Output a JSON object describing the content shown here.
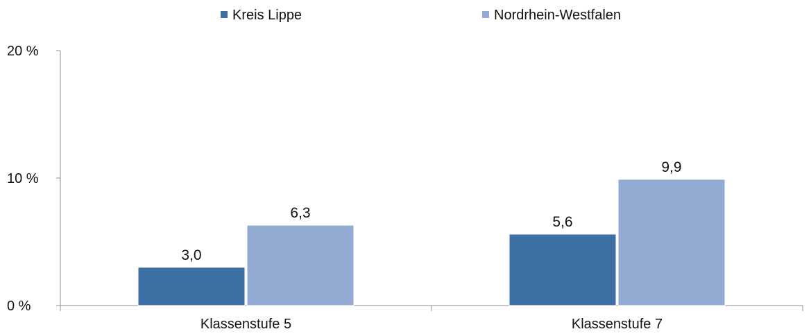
{
  "chart_data": {
    "type": "bar",
    "categories": [
      "Klassenstufe 5",
      "Klassenstufe 7"
    ],
    "series": [
      {
        "name": "Kreis Lippe",
        "values": [
          3.0,
          5.6
        ],
        "labels": [
          "3,0",
          "5,6"
        ],
        "color": "#3e6fa3"
      },
      {
        "name": "Nordrhein-Westfalen",
        "values": [
          6.3,
          9.9
        ],
        "labels": [
          "6,3",
          "9,9"
        ],
        "color": "#93aad2"
      }
    ],
    "y_ticks": [
      0,
      10,
      20
    ],
    "y_tick_labels": [
      "0 %",
      "10 %",
      "20 %"
    ],
    "ylim": [
      0,
      20
    ],
    "legend_position": "top-center",
    "grid": false
  }
}
